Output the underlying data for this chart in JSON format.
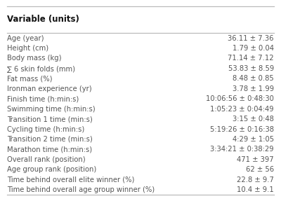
{
  "header": "Variable (units)",
  "rows": [
    [
      "Age (year)",
      "36.11 ± 7.36"
    ],
    [
      "Height (cm)",
      "1.79 ± 0.04"
    ],
    [
      "Body mass (kg)",
      "71.14 ± 7.12"
    ],
    [
      "∑ 6 skin folds (mm)",
      "53.83 ± 8.59"
    ],
    [
      "Fat mass (%)",
      "8.48 ± 0.85"
    ],
    [
      "Ironman experience (yr)",
      "3.78 ± 1.99"
    ],
    [
      "Finish time (h:min:s)",
      "10:06:56 ± 0:48:30"
    ],
    [
      "Swimming time (h:min:s)",
      "1:05:23 ± 0:04:49"
    ],
    [
      "Transition 1 time (min:s)",
      "3:15 ± 0:48"
    ],
    [
      "Cycling time (h:min:s)",
      "5:19:26 ± 0:16:38"
    ],
    [
      "Transition 2 time (min:s)",
      "4:29 ± 1:05"
    ],
    [
      "Marathon time (h:min:s)",
      "3:34:21 ± 0:38:29"
    ],
    [
      "Overall rank (position)",
      "471 ± 397"
    ],
    [
      "Age group rank (position)",
      "62 ± 56"
    ],
    [
      "Time behind overall elite winner (%)",
      "22.8 ± 9.7"
    ],
    [
      "Time behind overall age group winner (%)",
      "10.4 ± 9.1"
    ]
  ],
  "bg_color": "#ffffff",
  "text_color": "#555555",
  "header_color": "#111111",
  "line_color": "#bbbbbb",
  "font_size": 7.2,
  "header_font_size": 8.5
}
